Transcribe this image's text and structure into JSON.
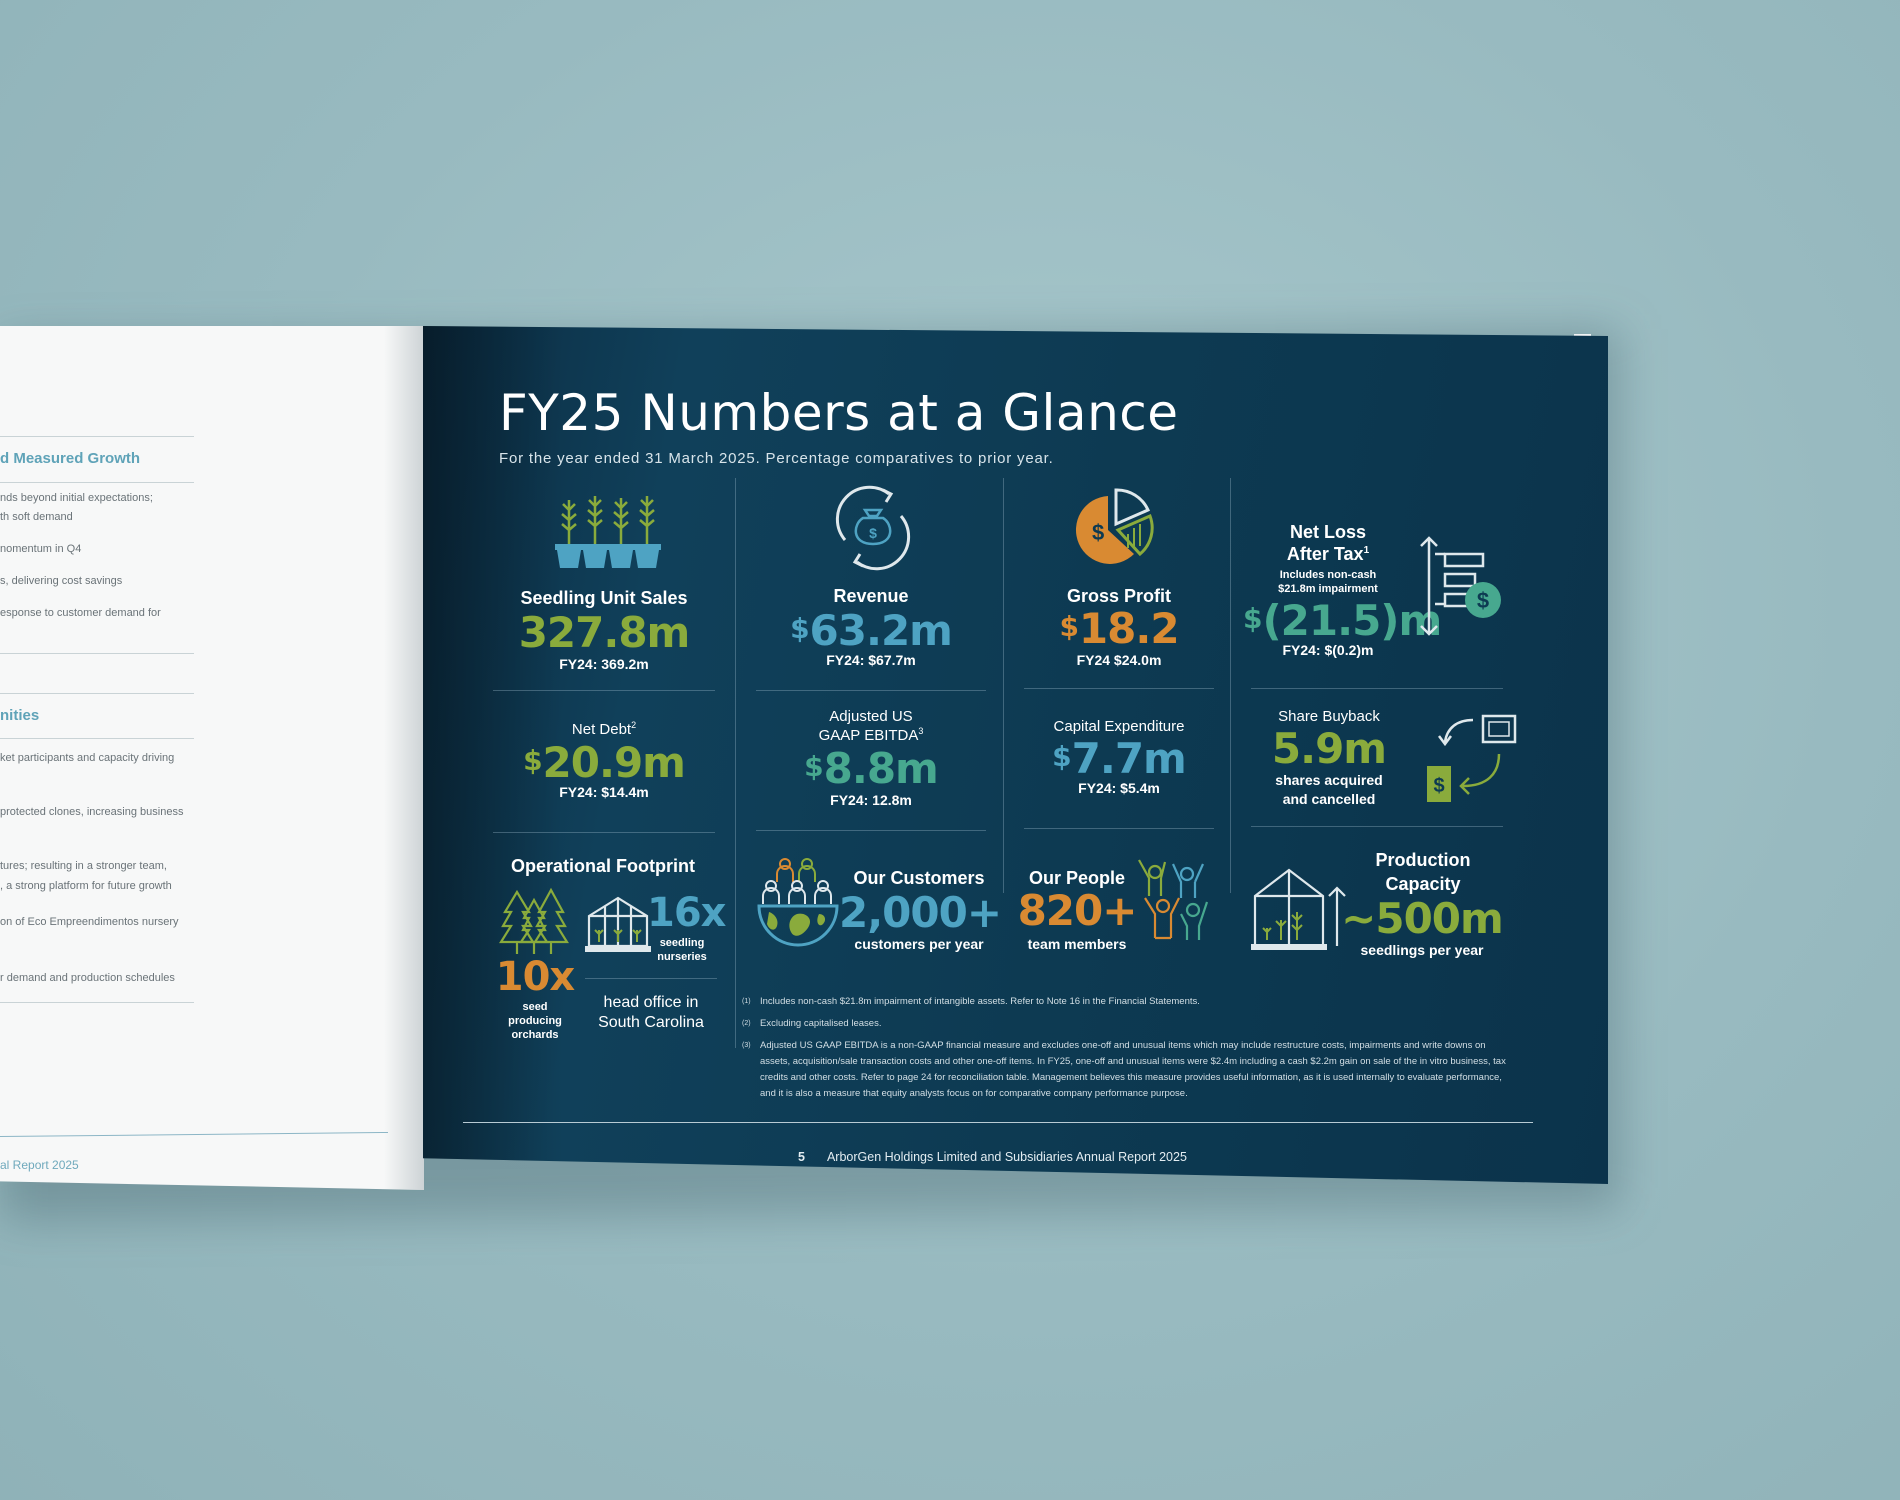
{
  "left_page": {
    "section1_heading": "d Measured Growth",
    "section1_lines": [
      "nds beyond initial expectations;",
      "th soft demand",
      "nomentum in Q4",
      "s, delivering cost savings",
      "esponse to customer demand for"
    ],
    "section2_heading": "nities",
    "section2_lines": [
      "ket participants and capacity driving",
      "protected clones, increasing business",
      "tures; resulting in a stronger team,",
      ", a strong platform for future growth",
      "on of Eco Empreendimentos nursery",
      "r demand and production schedules"
    ],
    "footer": "al Report 2025"
  },
  "page": {
    "title": "FY25 Numbers at a Glance",
    "subtitle": "For the year ended 31 March 2025. Percentage comparatives to prior year."
  },
  "metrics": {
    "seedling": {
      "label": "Seedling Unit Sales",
      "value": "327.8m",
      "prior": "FY24: 369.2m"
    },
    "revenue": {
      "label": "Revenue",
      "currency": "$",
      "value": "63.2m",
      "prior": "FY24: $67.7m"
    },
    "gross_profit": {
      "label": "Gross Profit",
      "currency": "$",
      "value": "18.2",
      "prior": "FY24 $24.0m"
    },
    "net_loss": {
      "label_line1": "Net Loss",
      "label_line2": "After Tax",
      "sup": "1",
      "note_line1": "Includes non-cash",
      "note_line2": "$21.8m impairment",
      "currency": "$",
      "value": "(21.5)m",
      "prior": "FY24: $(0.2)m"
    },
    "net_debt": {
      "label": "Net Debt",
      "sup": "2",
      "currency": "$",
      "value": "20.9m",
      "prior": "FY24: $14.4m"
    },
    "ebitda": {
      "label_line1": "Adjusted US",
      "label_line2": "GAAP EBITDA",
      "sup": "3",
      "currency": "$",
      "value": "8.8m",
      "prior": "FY24: 12.8m"
    },
    "capex": {
      "label": "Capital Expenditure",
      "currency": "$",
      "value": "7.7m",
      "prior": "FY24: $5.4m"
    },
    "buyback": {
      "label": "Share Buyback",
      "value": "5.9m",
      "desc_line1": "shares acquired",
      "desc_line2": "and cancelled"
    },
    "footprint": {
      "label": "Operational Footprint",
      "orchards_value": "10x",
      "orchards_line1": "seed",
      "orchards_line2": "producing",
      "orchards_line3": "orchards",
      "nurseries_value": "16x",
      "nurseries_line1": "seedling",
      "nurseries_line2": "nurseries",
      "office_line1": "head office in",
      "office_line2": "South Carolina"
    },
    "customers": {
      "label": "Our Customers",
      "value": "2,000+",
      "desc": "customers per year"
    },
    "people": {
      "label": "Our People",
      "value": "820+",
      "desc": "team members"
    },
    "production": {
      "label_line1": "Production",
      "label_line2": "Capacity",
      "value": "~500m",
      "desc": "seedlings per year"
    }
  },
  "footnotes": [
    {
      "num": "(1)",
      "text": "Includes non-cash $21.8m impairment of intangible assets. Refer to Note 16 in the Financial Statements."
    },
    {
      "num": "(2)",
      "text": "Excluding capitalised leases."
    },
    {
      "num": "(3)",
      "line1": "Adjusted US GAAP EBITDA is a non-GAAP financial measure and excludes one-off and unusual items which may include restructure costs, impairments and write downs on",
      "line2": "assets, acquisition/sale transaction costs and other one-off items. In FY25, one-off and unusual items were $2.4m including a cash $2.2m gain on sale of the in vitro business, tax",
      "line3": "credits and other costs. Refer to page 24 for reconciliation table. Management believes this measure provides useful information, as it is used internally to evaluate performance,",
      "line4": "and it is also a measure that equity analysts focus on for comparative company performance purpose."
    }
  ],
  "footer": {
    "page_number": "5",
    "text": "ArborGen Holdings Limited and Subsidiaries  Annual Report 2025"
  },
  "colors": {
    "green": "#8aab3c",
    "blue": "#4ea3c3",
    "orange": "#d98a32",
    "teal": "#47a88f",
    "navy": "#0d3a52"
  },
  "icons": [
    "seedling-trays-icon",
    "money-bag-cycle-icon",
    "pie-chart-dollar-icon",
    "arrows-document-dollar-icon",
    "exchange-cash-icon",
    "pine-trees-icon",
    "greenhouse-icon",
    "customers-globe-icon",
    "people-celebrating-icon",
    "greenhouse-growth-icon"
  ]
}
